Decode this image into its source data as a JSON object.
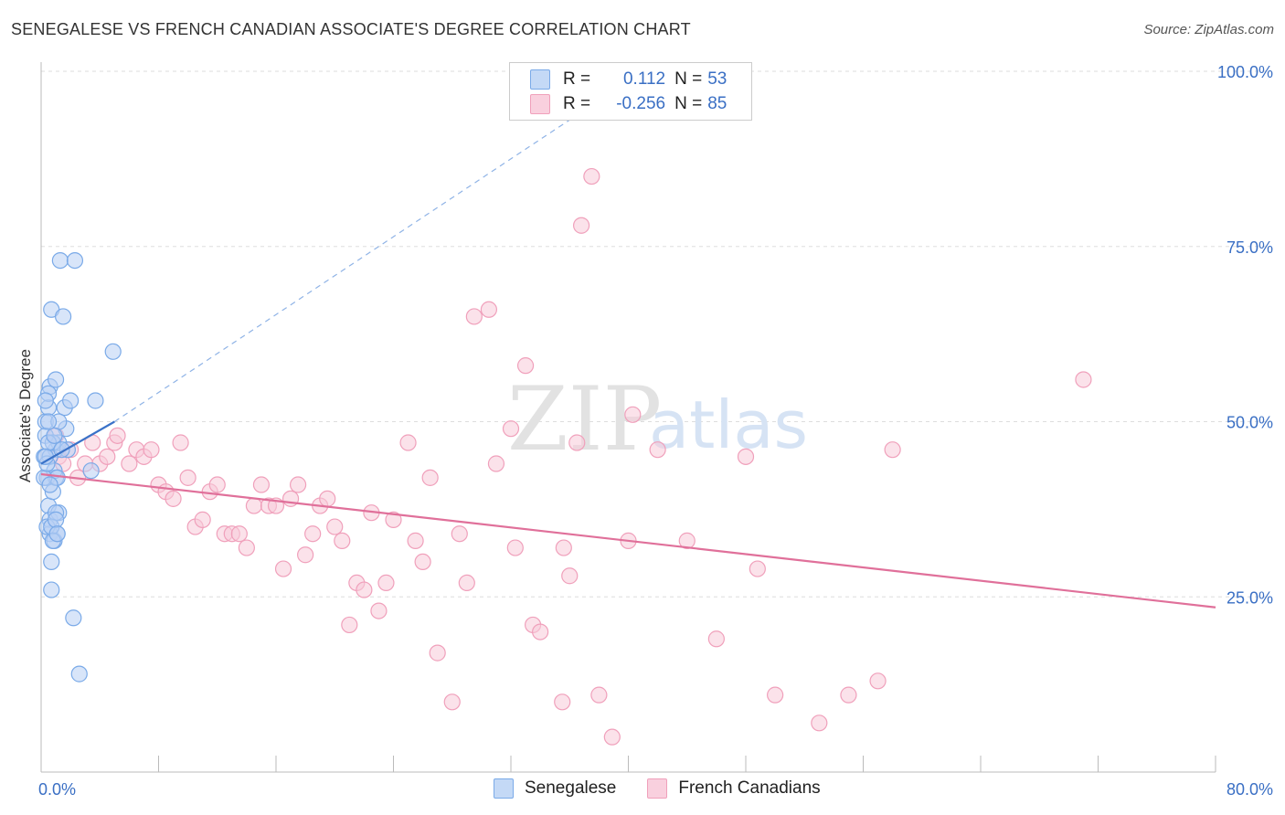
{
  "header": {
    "title": "SENEGALESE VS FRENCH CANADIAN ASSOCIATE'S DEGREE CORRELATION CHART",
    "source": "Source: ZipAtlas.com"
  },
  "legend": {
    "rows": [
      {
        "r_label": "R =",
        "r_value": "0.112",
        "n_label": "N =",
        "n_value": "53",
        "color": "#7aaae8"
      },
      {
        "r_label": "R =",
        "r_value": "-0.256",
        "n_label": "N =",
        "n_value": "85",
        "color": "#f4a0bb"
      }
    ],
    "bottom": [
      "Senegalese",
      "French Canadians"
    ]
  },
  "colors": {
    "blue_fill": "#b8d0f4",
    "blue_stroke": "#7aaae8",
    "blue_line": "#3a72c8",
    "pink_fill": "#f8cad9",
    "pink_stroke": "#f0a0bb",
    "pink_line": "#e0709a",
    "tick_label": "#3a6fc4",
    "grid": "#dddddd"
  },
  "chart_data": {
    "type": "scatter",
    "title": "SENEGALESE VS FRENCH CANADIAN ASSOCIATE'S DEGREE CORRELATION CHART",
    "xlabel": "",
    "ylabel": "Associate's Degree",
    "xlim": [
      0,
      80
    ],
    "ylim": [
      0,
      100
    ],
    "x_tick_labels": [
      "0.0%",
      "80.0%"
    ],
    "y_tick_labels": [
      "25.0%",
      "50.0%",
      "75.0%",
      "100.0%"
    ],
    "y_ticks": [
      25,
      50,
      75,
      100
    ],
    "watermark": "ZIPatlas",
    "series": [
      {
        "name": "Senegalese",
        "points": [
          [
            0.2,
            45
          ],
          [
            0.3,
            50
          ],
          [
            0.4,
            42
          ],
          [
            0.5,
            38
          ],
          [
            0.5,
            52
          ],
          [
            0.6,
            36
          ],
          [
            0.6,
            34
          ],
          [
            0.6,
            55
          ],
          [
            0.7,
            30
          ],
          [
            0.7,
            66
          ],
          [
            0.8,
            40
          ],
          [
            0.9,
            33
          ],
          [
            1.0,
            46
          ],
          [
            1.0,
            56
          ],
          [
            1.0,
            42
          ],
          [
            1.1,
            34
          ],
          [
            1.2,
            37
          ],
          [
            1.2,
            47
          ],
          [
            1.3,
            73
          ],
          [
            1.5,
            65
          ],
          [
            1.6,
            52
          ],
          [
            1.7,
            49
          ],
          [
            1.8,
            46
          ],
          [
            2.0,
            53
          ],
          [
            2.2,
            22
          ],
          [
            2.3,
            73
          ],
          [
            2.6,
            14
          ],
          [
            3.4,
            43
          ],
          [
            3.7,
            53
          ],
          [
            4.9,
            60
          ],
          [
            0.3,
            48
          ],
          [
            0.4,
            35
          ],
          [
            0.5,
            54
          ],
          [
            0.6,
            45
          ],
          [
            0.7,
            26
          ],
          [
            0.8,
            47
          ],
          [
            0.9,
            43
          ],
          [
            1.0,
            37
          ],
          [
            1.1,
            42
          ],
          [
            1.2,
            50
          ],
          [
            0.2,
            42
          ],
          [
            0.3,
            53
          ],
          [
            0.4,
            44
          ],
          [
            0.5,
            47
          ],
          [
            0.6,
            41
          ],
          [
            0.7,
            35
          ],
          [
            0.8,
            33
          ],
          [
            0.9,
            48
          ],
          [
            1.0,
            36
          ],
          [
            1.1,
            34
          ],
          [
            1.4,
            46
          ],
          [
            0.5,
            50
          ],
          [
            0.3,
            45
          ]
        ]
      },
      {
        "name": "French Canadians",
        "points": [
          [
            1.0,
            48
          ],
          [
            1.2,
            45
          ],
          [
            1.5,
            44
          ],
          [
            2.0,
            46
          ],
          [
            2.5,
            42
          ],
          [
            3.0,
            44
          ],
          [
            3.5,
            47
          ],
          [
            4.0,
            44
          ],
          [
            4.5,
            45
          ],
          [
            5.0,
            47
          ],
          [
            5.2,
            48
          ],
          [
            6.0,
            44
          ],
          [
            6.5,
            46
          ],
          [
            7.0,
            45
          ],
          [
            7.5,
            46
          ],
          [
            8.0,
            41
          ],
          [
            8.5,
            40
          ],
          [
            9.0,
            39
          ],
          [
            9.5,
            47
          ],
          [
            10.0,
            42
          ],
          [
            10.5,
            35
          ],
          [
            11.0,
            36
          ],
          [
            11.5,
            40
          ],
          [
            12.0,
            41
          ],
          [
            12.5,
            34
          ],
          [
            13.0,
            34
          ],
          [
            13.5,
            34
          ],
          [
            14.0,
            32
          ],
          [
            14.5,
            38
          ],
          [
            15.0,
            41
          ],
          [
            15.5,
            38
          ],
          [
            16.0,
            38
          ],
          [
            16.5,
            29
          ],
          [
            17.0,
            39
          ],
          [
            17.5,
            41
          ],
          [
            18.0,
            31
          ],
          [
            18.5,
            34
          ],
          [
            19.0,
            38
          ],
          [
            19.5,
            39
          ],
          [
            20.0,
            35
          ],
          [
            20.5,
            33
          ],
          [
            21.0,
            21
          ],
          [
            21.5,
            27
          ],
          [
            22.0,
            26
          ],
          [
            22.5,
            37
          ],
          [
            23.0,
            23
          ],
          [
            23.5,
            27
          ],
          [
            24.0,
            36
          ],
          [
            25.0,
            47
          ],
          [
            25.5,
            33
          ],
          [
            26.0,
            30
          ],
          [
            26.5,
            42
          ],
          [
            27.0,
            17
          ],
          [
            28.0,
            10
          ],
          [
            28.5,
            34
          ],
          [
            29.0,
            27
          ],
          [
            29.5,
            65
          ],
          [
            30.5,
            66
          ],
          [
            31.0,
            44
          ],
          [
            32.0,
            49
          ],
          [
            32.3,
            32
          ],
          [
            33.0,
            58
          ],
          [
            33.5,
            21
          ],
          [
            34.0,
            20
          ],
          [
            35.5,
            10
          ],
          [
            35.6,
            32
          ],
          [
            36.0,
            28
          ],
          [
            36.5,
            47
          ],
          [
            36.8,
            78
          ],
          [
            37.5,
            85
          ],
          [
            38.0,
            11
          ],
          [
            38.9,
            5
          ],
          [
            40.0,
            33
          ],
          [
            40.3,
            51
          ],
          [
            42.0,
            46
          ],
          [
            44.0,
            33
          ],
          [
            46.0,
            19
          ],
          [
            48.0,
            45
          ],
          [
            50.0,
            11
          ],
          [
            53.0,
            7
          ],
          [
            55.0,
            11
          ],
          [
            57.0,
            13
          ],
          [
            58.0,
            46
          ],
          [
            71.0,
            56
          ],
          [
            48.8,
            29
          ]
        ]
      }
    ],
    "trend_lines": [
      {
        "series": "Senegalese",
        "solid": [
          [
            0,
            44
          ],
          [
            5,
            50
          ]
        ],
        "dashed": [
          [
            5,
            50
          ],
          [
            41,
            100
          ]
        ]
      },
      {
        "series": "French Canadians",
        "solid": [
          [
            0,
            42.5
          ],
          [
            80,
            23.5
          ]
        ]
      }
    ]
  }
}
